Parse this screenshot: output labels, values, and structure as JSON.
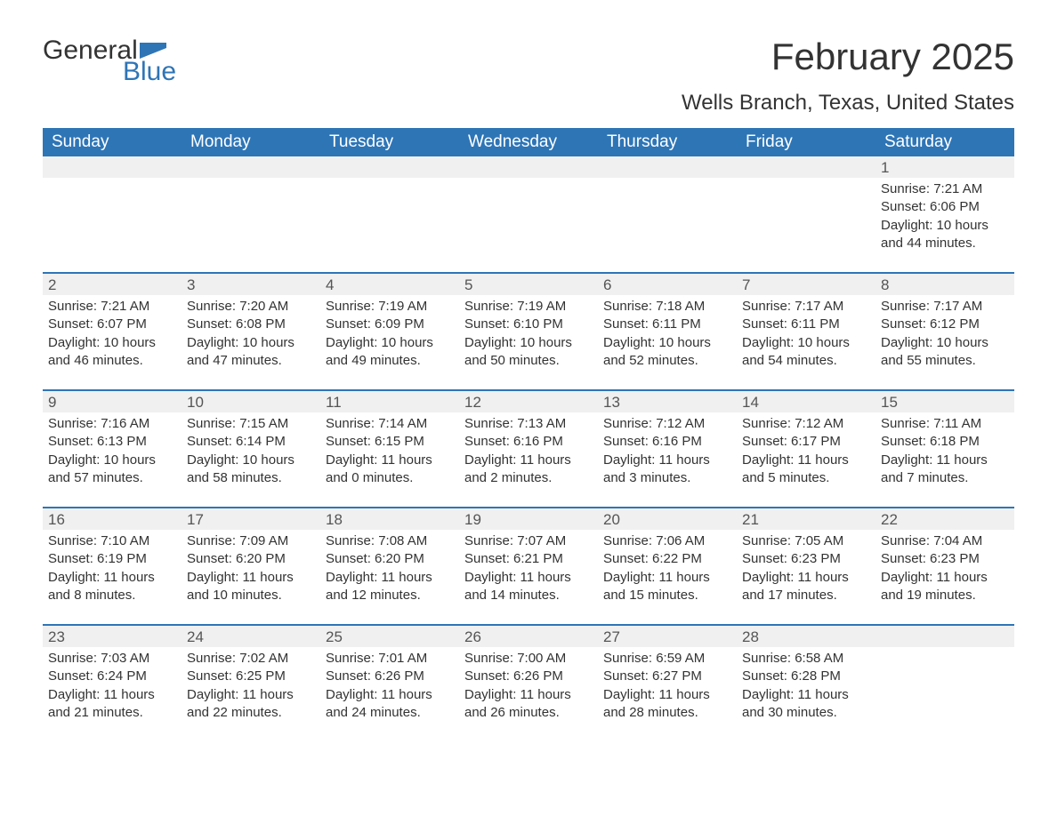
{
  "logo": {
    "word1": "General",
    "word2": "Blue",
    "icon_color": "#2e75b6"
  },
  "title": "February 2025",
  "location": "Wells Branch, Texas, United States",
  "colors": {
    "header_bg": "#2e75b6",
    "header_text": "#ffffff",
    "daynum_bg": "#f0f0f0",
    "week_border": "#2e75b6",
    "text": "#333333"
  },
  "days_of_week": [
    "Sunday",
    "Monday",
    "Tuesday",
    "Wednesday",
    "Thursday",
    "Friday",
    "Saturday"
  ],
  "weeks": [
    [
      null,
      null,
      null,
      null,
      null,
      null,
      {
        "n": "1",
        "sunrise": "Sunrise: 7:21 AM",
        "sunset": "Sunset: 6:06 PM",
        "daylight": "Daylight: 10 hours and 44 minutes."
      }
    ],
    [
      {
        "n": "2",
        "sunrise": "Sunrise: 7:21 AM",
        "sunset": "Sunset: 6:07 PM",
        "daylight": "Daylight: 10 hours and 46 minutes."
      },
      {
        "n": "3",
        "sunrise": "Sunrise: 7:20 AM",
        "sunset": "Sunset: 6:08 PM",
        "daylight": "Daylight: 10 hours and 47 minutes."
      },
      {
        "n": "4",
        "sunrise": "Sunrise: 7:19 AM",
        "sunset": "Sunset: 6:09 PM",
        "daylight": "Daylight: 10 hours and 49 minutes."
      },
      {
        "n": "5",
        "sunrise": "Sunrise: 7:19 AM",
        "sunset": "Sunset: 6:10 PM",
        "daylight": "Daylight: 10 hours and 50 minutes."
      },
      {
        "n": "6",
        "sunrise": "Sunrise: 7:18 AM",
        "sunset": "Sunset: 6:11 PM",
        "daylight": "Daylight: 10 hours and 52 minutes."
      },
      {
        "n": "7",
        "sunrise": "Sunrise: 7:17 AM",
        "sunset": "Sunset: 6:11 PM",
        "daylight": "Daylight: 10 hours and 54 minutes."
      },
      {
        "n": "8",
        "sunrise": "Sunrise: 7:17 AM",
        "sunset": "Sunset: 6:12 PM",
        "daylight": "Daylight: 10 hours and 55 minutes."
      }
    ],
    [
      {
        "n": "9",
        "sunrise": "Sunrise: 7:16 AM",
        "sunset": "Sunset: 6:13 PM",
        "daylight": "Daylight: 10 hours and 57 minutes."
      },
      {
        "n": "10",
        "sunrise": "Sunrise: 7:15 AM",
        "sunset": "Sunset: 6:14 PM",
        "daylight": "Daylight: 10 hours and 58 minutes."
      },
      {
        "n": "11",
        "sunrise": "Sunrise: 7:14 AM",
        "sunset": "Sunset: 6:15 PM",
        "daylight": "Daylight: 11 hours and 0 minutes."
      },
      {
        "n": "12",
        "sunrise": "Sunrise: 7:13 AM",
        "sunset": "Sunset: 6:16 PM",
        "daylight": "Daylight: 11 hours and 2 minutes."
      },
      {
        "n": "13",
        "sunrise": "Sunrise: 7:12 AM",
        "sunset": "Sunset: 6:16 PM",
        "daylight": "Daylight: 11 hours and 3 minutes."
      },
      {
        "n": "14",
        "sunrise": "Sunrise: 7:12 AM",
        "sunset": "Sunset: 6:17 PM",
        "daylight": "Daylight: 11 hours and 5 minutes."
      },
      {
        "n": "15",
        "sunrise": "Sunrise: 7:11 AM",
        "sunset": "Sunset: 6:18 PM",
        "daylight": "Daylight: 11 hours and 7 minutes."
      }
    ],
    [
      {
        "n": "16",
        "sunrise": "Sunrise: 7:10 AM",
        "sunset": "Sunset: 6:19 PM",
        "daylight": "Daylight: 11 hours and 8 minutes."
      },
      {
        "n": "17",
        "sunrise": "Sunrise: 7:09 AM",
        "sunset": "Sunset: 6:20 PM",
        "daylight": "Daylight: 11 hours and 10 minutes."
      },
      {
        "n": "18",
        "sunrise": "Sunrise: 7:08 AM",
        "sunset": "Sunset: 6:20 PM",
        "daylight": "Daylight: 11 hours and 12 minutes."
      },
      {
        "n": "19",
        "sunrise": "Sunrise: 7:07 AM",
        "sunset": "Sunset: 6:21 PM",
        "daylight": "Daylight: 11 hours and 14 minutes."
      },
      {
        "n": "20",
        "sunrise": "Sunrise: 7:06 AM",
        "sunset": "Sunset: 6:22 PM",
        "daylight": "Daylight: 11 hours and 15 minutes."
      },
      {
        "n": "21",
        "sunrise": "Sunrise: 7:05 AM",
        "sunset": "Sunset: 6:23 PM",
        "daylight": "Daylight: 11 hours and 17 minutes."
      },
      {
        "n": "22",
        "sunrise": "Sunrise: 7:04 AM",
        "sunset": "Sunset: 6:23 PM",
        "daylight": "Daylight: 11 hours and 19 minutes."
      }
    ],
    [
      {
        "n": "23",
        "sunrise": "Sunrise: 7:03 AM",
        "sunset": "Sunset: 6:24 PM",
        "daylight": "Daylight: 11 hours and 21 minutes."
      },
      {
        "n": "24",
        "sunrise": "Sunrise: 7:02 AM",
        "sunset": "Sunset: 6:25 PM",
        "daylight": "Daylight: 11 hours and 22 minutes."
      },
      {
        "n": "25",
        "sunrise": "Sunrise: 7:01 AM",
        "sunset": "Sunset: 6:26 PM",
        "daylight": "Daylight: 11 hours and 24 minutes."
      },
      {
        "n": "26",
        "sunrise": "Sunrise: 7:00 AM",
        "sunset": "Sunset: 6:26 PM",
        "daylight": "Daylight: 11 hours and 26 minutes."
      },
      {
        "n": "27",
        "sunrise": "Sunrise: 6:59 AM",
        "sunset": "Sunset: 6:27 PM",
        "daylight": "Daylight: 11 hours and 28 minutes."
      },
      {
        "n": "28",
        "sunrise": "Sunrise: 6:58 AM",
        "sunset": "Sunset: 6:28 PM",
        "daylight": "Daylight: 11 hours and 30 minutes."
      },
      null
    ]
  ]
}
